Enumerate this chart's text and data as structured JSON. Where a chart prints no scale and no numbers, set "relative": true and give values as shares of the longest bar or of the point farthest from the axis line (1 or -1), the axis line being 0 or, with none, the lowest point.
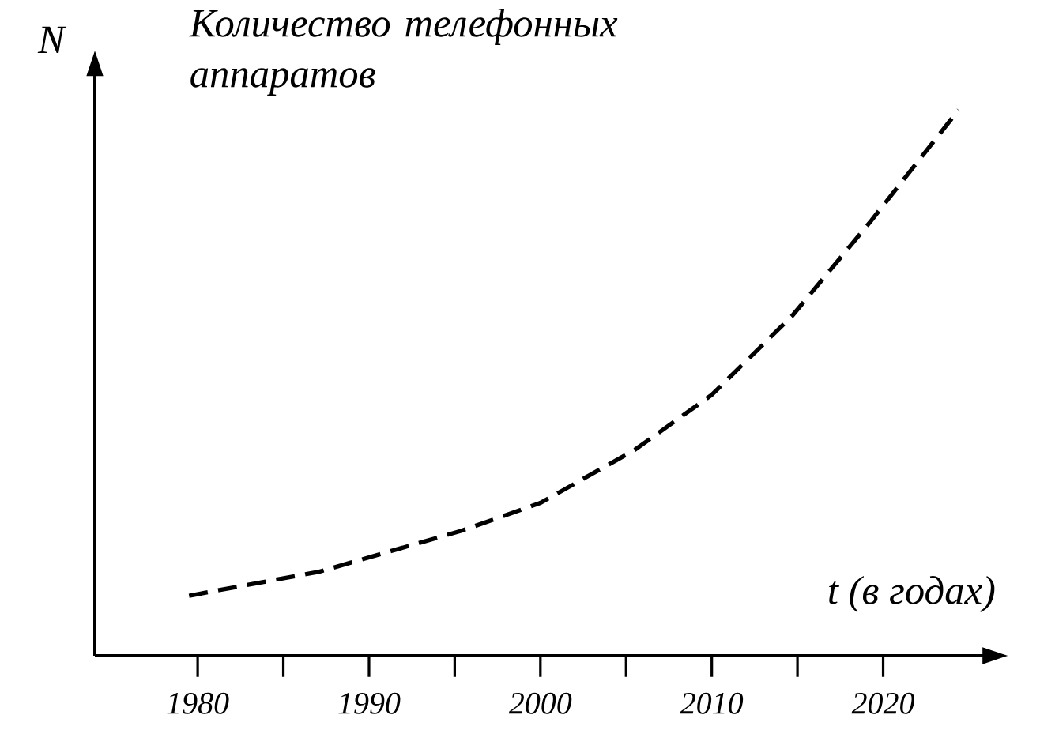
{
  "chart_data": {
    "type": "line",
    "title": "Количество телефонных аппаратов",
    "xlabel": "t (в годах)",
    "ylabel": "N",
    "relative": true,
    "line_style": "dashed",
    "color": "#000000",
    "x": [
      1979.5,
      1987.1,
      1995.4,
      2000,
      2005.5,
      2010,
      2014.7,
      2019.3,
      2024.4
    ],
    "values": [
      0.11,
      0.154,
      0.229,
      0.28,
      0.377,
      0.478,
      0.623,
      0.797,
      1
    ],
    "xlim": [
      1974,
      2027
    ],
    "xticks": [
      1980,
      {
        "value": 1985,
        "label": null
      },
      1990,
      {
        "value": 1995,
        "label": null
      },
      2000,
      {
        "value": 2005,
        "label": null
      },
      2010,
      {
        "value": 2015,
        "label": null
      },
      2020
    ]
  }
}
